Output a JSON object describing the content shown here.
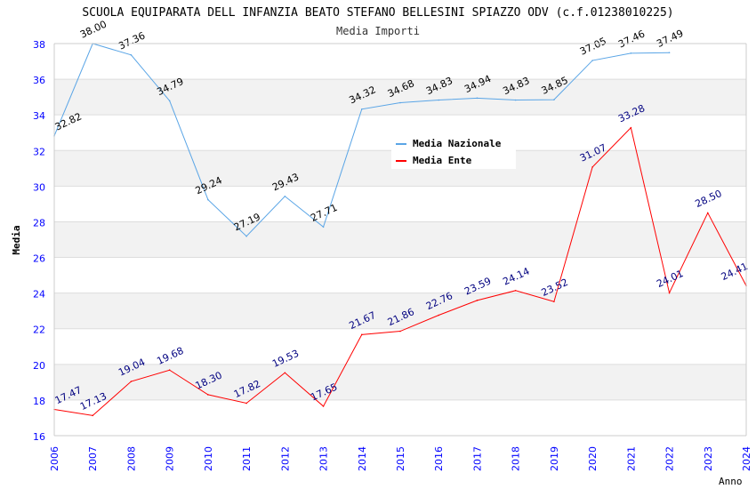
{
  "chart_data": {
    "type": "line",
    "title": "SCUOLA EQUIPARATA DELL INFANZIA BEATO STEFANO BELLESINI SPIAZZO ODV (c.f.01238010225)",
    "subtitle": "Media Importi",
    "xlabel": "Anno",
    "ylabel": "Media",
    "ylim": [
      16,
      38
    ],
    "yticks": [
      "16",
      "18",
      "20",
      "22",
      "24",
      "26",
      "28",
      "30",
      "32",
      "34",
      "36",
      "38"
    ],
    "x": [
      "2006",
      "2007",
      "2008",
      "2009",
      "2010",
      "2011",
      "2012",
      "2013",
      "2014",
      "2015",
      "2016",
      "2017",
      "2018",
      "2019",
      "2020",
      "2021",
      "2022",
      "2023",
      "2024"
    ],
    "legend_position": "top-right",
    "series": [
      {
        "name": "Media Nazionale",
        "color": "#5aa5e6",
        "label_color": "#000000",
        "values": [
          32.82,
          38.0,
          37.36,
          34.79,
          29.24,
          27.19,
          29.43,
          27.71,
          34.32,
          34.68,
          34.83,
          34.94,
          34.83,
          34.85,
          37.05,
          37.46,
          37.49,
          null,
          null
        ],
        "labels": [
          "32.82",
          "38.00",
          "37.36",
          "34.79",
          "29.24",
          "27.19",
          "29.43",
          "27.71",
          "34.32",
          "34.68",
          "34.83",
          "34.94",
          "34.83",
          "34.85",
          "37.05",
          "37.46",
          "37.49",
          "",
          ""
        ]
      },
      {
        "name": "Media Ente",
        "color": "#ff0000",
        "label_color": "#000080",
        "values": [
          17.47,
          17.13,
          19.04,
          19.68,
          18.3,
          17.82,
          19.53,
          17.65,
          21.67,
          21.86,
          22.76,
          23.59,
          24.14,
          23.52,
          31.07,
          33.28,
          24.01,
          28.5,
          24.41
        ],
        "labels": [
          "17.47",
          "17.13",
          "19.04",
          "19.68",
          "18.30",
          "17.82",
          "19.53",
          "17.65",
          "21.67",
          "21.86",
          "22.76",
          "23.59",
          "24.14",
          "23.52",
          "31.07",
          "33.28",
          "24.01",
          "28.50",
          "24.41"
        ]
      }
    ]
  }
}
